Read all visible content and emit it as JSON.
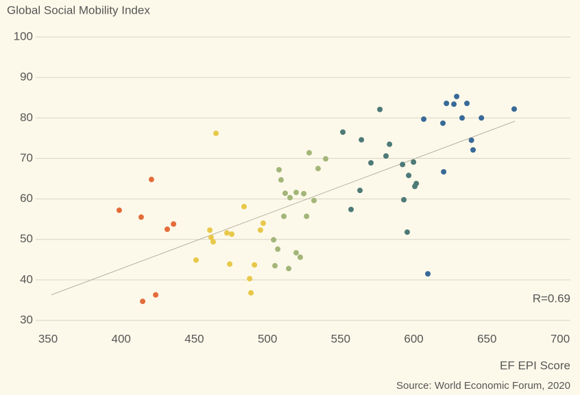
{
  "chart_data": {
    "type": "scatter",
    "y_label": "Global Social Mobility Index",
    "x_label": "EF EPI Score",
    "source": "Source: World Economic Forum, 2020",
    "annotation": "R=0.69",
    "xlim": [
      350,
      700
    ],
    "xticks": [
      350,
      400,
      450,
      500,
      550,
      600,
      650,
      700
    ],
    "ylim": [
      30,
      100
    ],
    "yticks": [
      30,
      40,
      50,
      60,
      70,
      80,
      90,
      100
    ],
    "grid": true,
    "trendline": {
      "color": "#b5b2a4",
      "x": [
        352.3,
        669.1
      ],
      "y": [
        36.3,
        79.2
      ]
    },
    "series": [
      {
        "color": "#e36c3a",
        "x": [
          398.7,
          420.7,
          413.7,
          435.8,
          431.5,
          423.6,
          414.7
        ],
        "values": [
          57.2,
          64.8,
          55.5,
          53.8,
          52.5,
          36.3,
          34.7
        ]
      },
      {
        "color": "#e8c84a",
        "x": [
          464.8,
          484.0,
          460.6,
          497.1,
          495.2,
          472.3,
          475.6,
          461.5,
          462.9,
          451.2,
          474.2,
          491.1,
          487.8,
          488.7
        ],
        "values": [
          76.2,
          58.1,
          52.3,
          54.0,
          52.3,
          51.6,
          51.3,
          50.5,
          49.4,
          44.9,
          43.9,
          43.7,
          40.3,
          36.8
        ]
      },
      {
        "color": "#a3b679",
        "x": [
          528.5,
          539.8,
          534.6,
          507.9,
          509.3,
          512.1,
          519.6,
          524.8,
          515.4,
          531.8,
          511.2,
          526.7,
          504.2,
          507.0,
          519.6,
          522.4,
          505.1,
          514.5
        ],
        "values": [
          71.4,
          69.9,
          67.5,
          67.2,
          64.7,
          61.4,
          61.6,
          61.3,
          60.3,
          59.6,
          55.7,
          55.7,
          49.9,
          47.6,
          46.7,
          45.6,
          43.5,
          42.8
        ]
      },
      {
        "color": "#4e7a78",
        "x": [
          576.8,
          551.5,
          564.2,
          583.4,
          581.0,
          570.7,
          592.3,
          599.8,
          596.5,
          601.7,
          600.7,
          563.2,
          557.1,
          593.2,
          595.5
        ],
        "values": [
          82.1,
          76.5,
          74.6,
          73.5,
          70.6,
          68.9,
          68.5,
          69.1,
          65.8,
          63.8,
          63.1,
          62.1,
          57.4,
          59.8,
          51.8
        ]
      },
      {
        "color": "#386a98",
        "x": [
          629.3,
          622.3,
          627.4,
          636.3,
          668.6,
          606.8,
          633.0,
          646.2,
          619.9,
          639.4,
          640.5,
          620.4,
          609.6
        ],
        "values": [
          85.3,
          83.6,
          83.4,
          83.6,
          82.2,
          79.7,
          80.0,
          80.0,
          78.7,
          74.5,
          72.1,
          66.7,
          41.5
        ]
      }
    ]
  }
}
